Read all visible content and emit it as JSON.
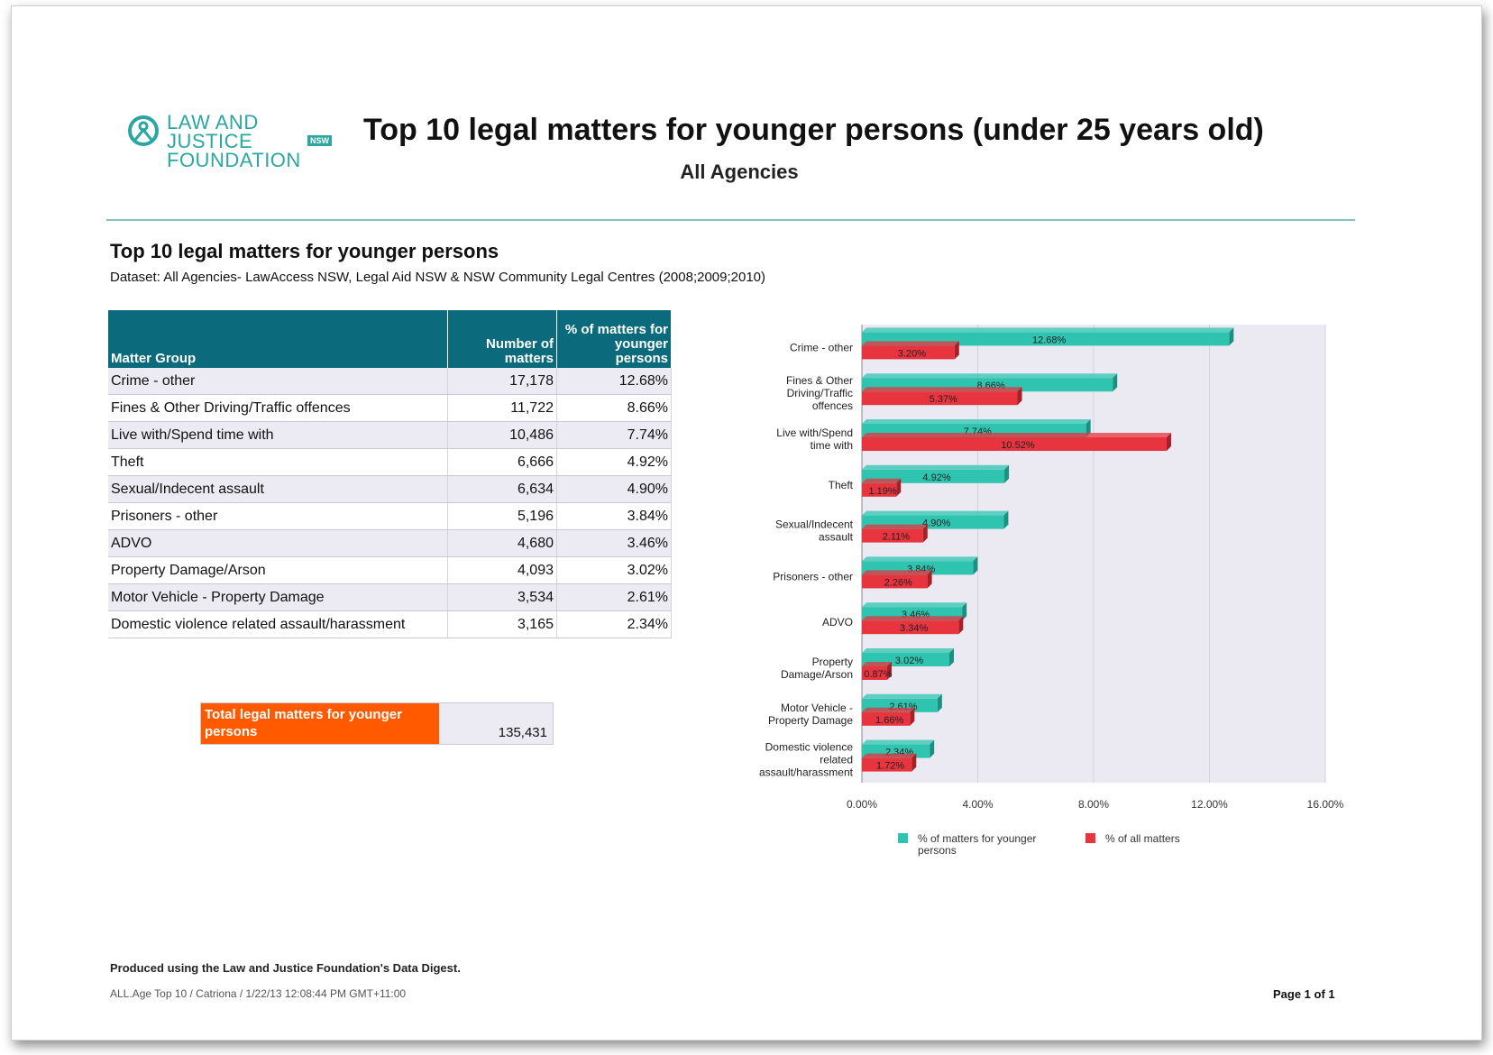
{
  "brand": {
    "logo_line1": "LAW AND JUSTICE",
    "logo_line2": "FOUNDATION",
    "logo_tag": "NSW"
  },
  "header": {
    "title": "Top 10 legal matters for younger persons (under 25 years old)",
    "subtitle": "All Agencies"
  },
  "section": {
    "title": "Top 10 legal matters for younger persons",
    "dataset": "Dataset: All Agencies- LawAccess NSW, Legal Aid NSW & NSW Community Legal Centres (2008;2009;2010)"
  },
  "table": {
    "headers": [
      "Matter Group",
      "Number of matters",
      "% of matters for younger persons"
    ],
    "rows": [
      [
        "Crime - other",
        "17,178",
        "12.68%"
      ],
      [
        "Fines & Other Driving/Traffic offences",
        "11,722",
        "8.66%"
      ],
      [
        "Live with/Spend time with",
        "10,486",
        "7.74%"
      ],
      [
        "Theft",
        "6,666",
        "4.92%"
      ],
      [
        "Sexual/Indecent assault",
        "6,634",
        "4.90%"
      ],
      [
        "Prisoners - other",
        "5,196",
        "3.84%"
      ],
      [
        "ADVO",
        "4,680",
        "3.46%"
      ],
      [
        "Property Damage/Arson",
        "4,093",
        "3.02%"
      ],
      [
        "Motor Vehicle - Property Damage",
        "3,534",
        "2.61%"
      ],
      [
        "Domestic violence related assault/harassment",
        "3,165",
        "2.34%"
      ]
    ],
    "total_label": "Total legal matters for younger persons",
    "total_value": "135,431"
  },
  "chart_data": {
    "type": "bar",
    "orientation": "horizontal",
    "categories": [
      "Crime - other",
      "Fines & Other Driving/Traffic offences",
      "Live with/Spend time with",
      "Theft",
      "Sexual/Indecent assault",
      "Prisoners - other",
      "ADVO",
      "Property Damage/Arson",
      "Motor Vehicle - Property Damage",
      "Domestic violence related assault/harassment"
    ],
    "series": [
      {
        "name": "% of matters for younger persons",
        "color": "#2ec4b0",
        "values": [
          12.68,
          8.66,
          7.74,
          4.92,
          4.9,
          3.84,
          3.46,
          3.02,
          2.61,
          2.34
        ]
      },
      {
        "name": "% of all matters",
        "color": "#e8343f",
        "values": [
          3.2,
          5.37,
          10.52,
          1.19,
          2.11,
          2.26,
          3.34,
          0.87,
          1.66,
          1.72
        ]
      }
    ],
    "xlim": [
      0,
      16
    ],
    "xticks": [
      "0.00%",
      "4.00%",
      "8.00%",
      "12.00%",
      "16.00%"
    ],
    "grid": true,
    "legend_position": "bottom"
  },
  "footer": {
    "produced": "Produced using the Law and Justice Foundation's Data Digest.",
    "meta": "ALL.Age Top 10 / Catriona / 1/22/13 12:08:44 PM GMT+11:00",
    "page": "Page 1 of 1"
  }
}
